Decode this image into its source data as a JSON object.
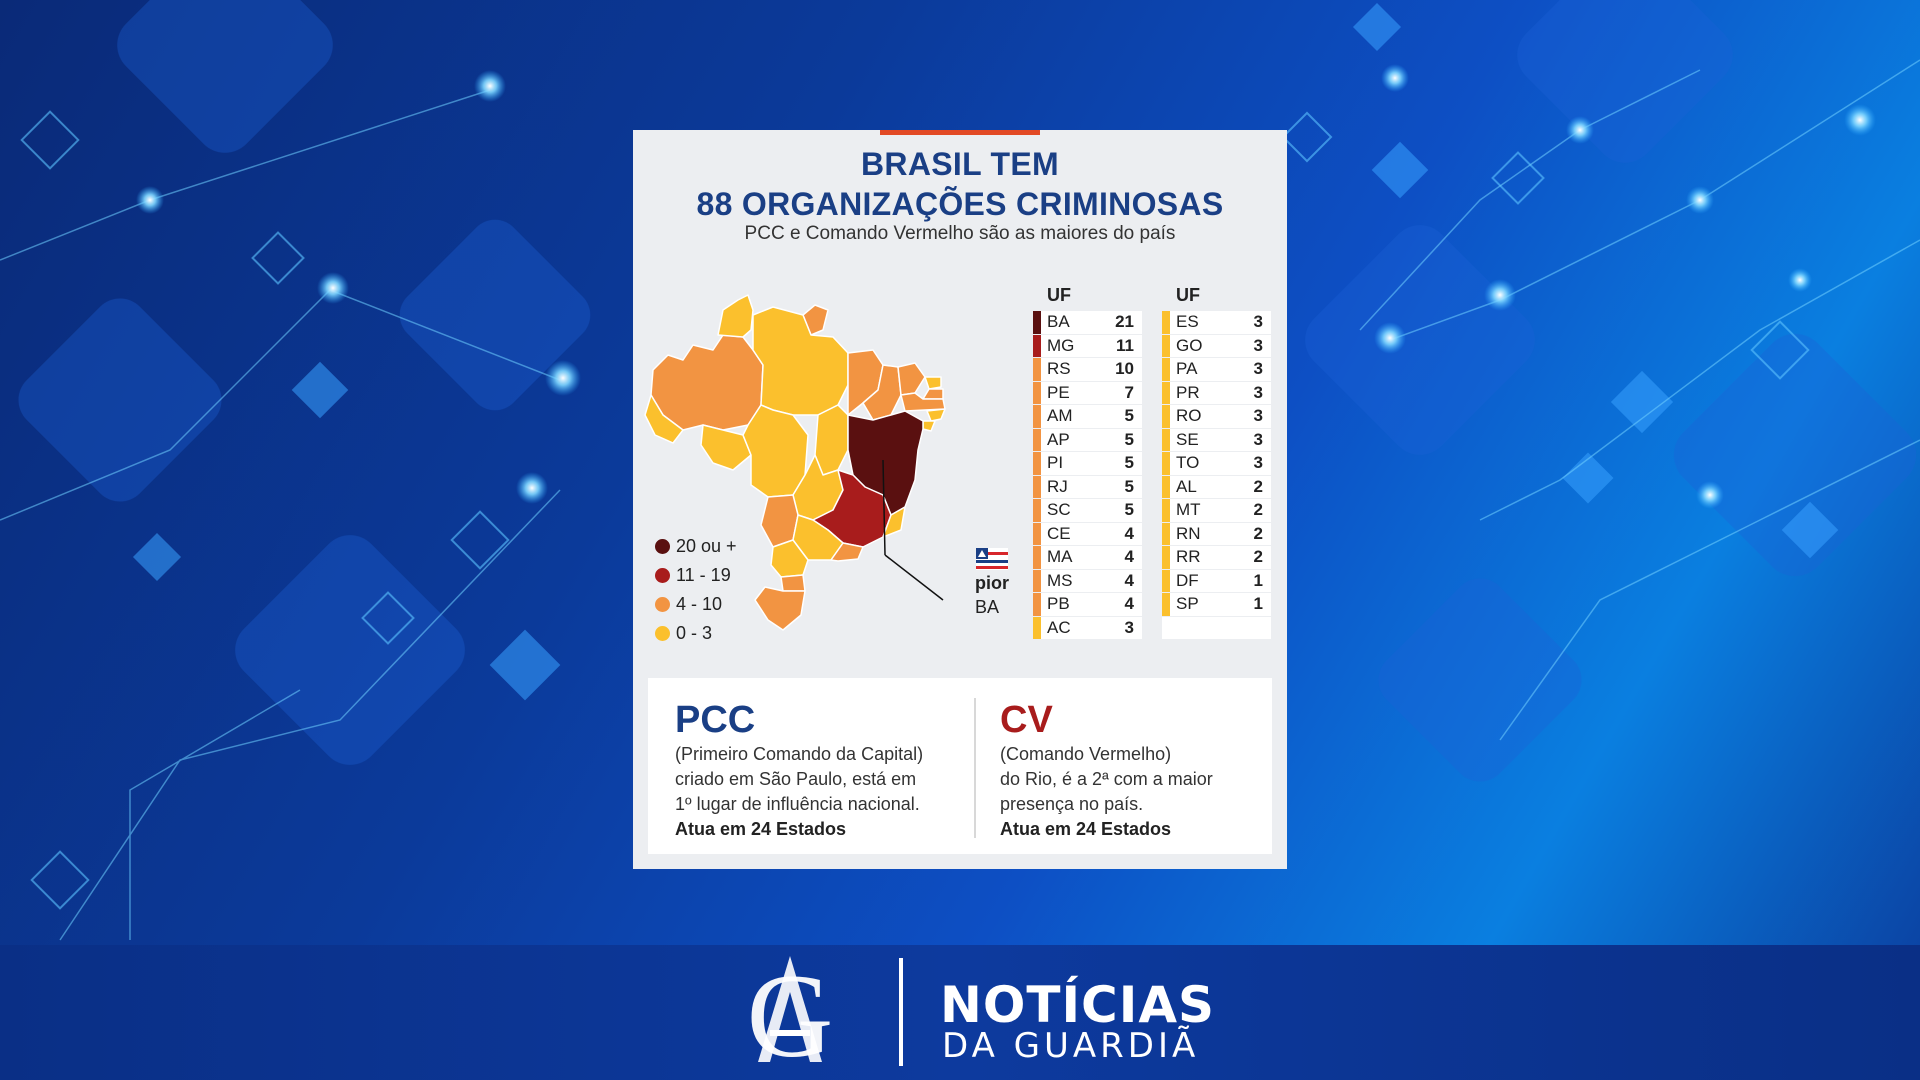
{
  "infographic": {
    "title_line1": "BRASIL TEM",
    "title_line2": "88 ORGANIZAÇÕES CRIMINOSAS",
    "subtitle": "PCC e Comando Vermelho são as maiores do país",
    "legend": [
      {
        "label": "20 ou +",
        "color": "#5a1010"
      },
      {
        "label": "11 - 19",
        "color": "#a81c1c"
      },
      {
        "label": "4 - 10",
        "color": "#f29442"
      },
      {
        "label": "0 - 3",
        "color": "#fbc02d"
      }
    ],
    "uf_header": "UF",
    "table_left": [
      {
        "uf": "BA",
        "value": "21",
        "color": "#5a1010"
      },
      {
        "uf": "MG",
        "value": "11",
        "color": "#a81c1c"
      },
      {
        "uf": "RS",
        "value": "10",
        "color": "#f29442"
      },
      {
        "uf": "PE",
        "value": "7",
        "color": "#f29442"
      },
      {
        "uf": "AM",
        "value": "5",
        "color": "#f29442"
      },
      {
        "uf": "AP",
        "value": "5",
        "color": "#f29442"
      },
      {
        "uf": "PI",
        "value": "5",
        "color": "#f29442"
      },
      {
        "uf": "RJ",
        "value": "5",
        "color": "#f29442"
      },
      {
        "uf": "SC",
        "value": "5",
        "color": "#f29442"
      },
      {
        "uf": "CE",
        "value": "4",
        "color": "#f29442"
      },
      {
        "uf": "MA",
        "value": "4",
        "color": "#f29442"
      },
      {
        "uf": "MS",
        "value": "4",
        "color": "#f29442"
      },
      {
        "uf": "PB",
        "value": "4",
        "color": "#f29442"
      },
      {
        "uf": "AC",
        "value": "3",
        "color": "#fbc02d"
      }
    ],
    "table_right": [
      {
        "uf": "ES",
        "value": "3",
        "color": "#fbc02d"
      },
      {
        "uf": "GO",
        "value": "3",
        "color": "#fbc02d"
      },
      {
        "uf": "PA",
        "value": "3",
        "color": "#fbc02d"
      },
      {
        "uf": "PR",
        "value": "3",
        "color": "#fbc02d"
      },
      {
        "uf": "RO",
        "value": "3",
        "color": "#fbc02d"
      },
      {
        "uf": "SE",
        "value": "3",
        "color": "#fbc02d"
      },
      {
        "uf": "TO",
        "value": "3",
        "color": "#fbc02d"
      },
      {
        "uf": "AL",
        "value": "2",
        "color": "#fbc02d"
      },
      {
        "uf": "MT",
        "value": "2",
        "color": "#fbc02d"
      },
      {
        "uf": "RN",
        "value": "2",
        "color": "#fbc02d"
      },
      {
        "uf": "RR",
        "value": "2",
        "color": "#fbc02d"
      },
      {
        "uf": "DF",
        "value": "1",
        "color": "#fbc02d"
      },
      {
        "uf": "SP",
        "value": "1",
        "color": "#fbc02d"
      }
    ],
    "pior_label": "pior",
    "pior_uf": "BA",
    "pcc": {
      "name": "PCC",
      "color": "#1a3f85",
      "line1": "(Primeiro Comando da Capital)",
      "line2": "criado em São Paulo, está em",
      "line3": "1º lugar de influência nacional.",
      "states": "Atua em 24 Estados"
    },
    "cv": {
      "name": "CV",
      "color": "#a81c1c",
      "line1": "(Comando Vermelho)",
      "line2": "do Rio, é a 2ª com a maior",
      "line3": "presença no país.",
      "states": "Atua em 24 Estados"
    }
  },
  "footer": {
    "brand_line1": "NOTÍCIAS",
    "brand_line2": "DA GUARDIÃ",
    "logo": "ag-monogram-logo"
  },
  "colors": {
    "brand_blue": "#0d3a9e",
    "title_blue": "#1a3f85",
    "accent_red": "#e24a25"
  }
}
